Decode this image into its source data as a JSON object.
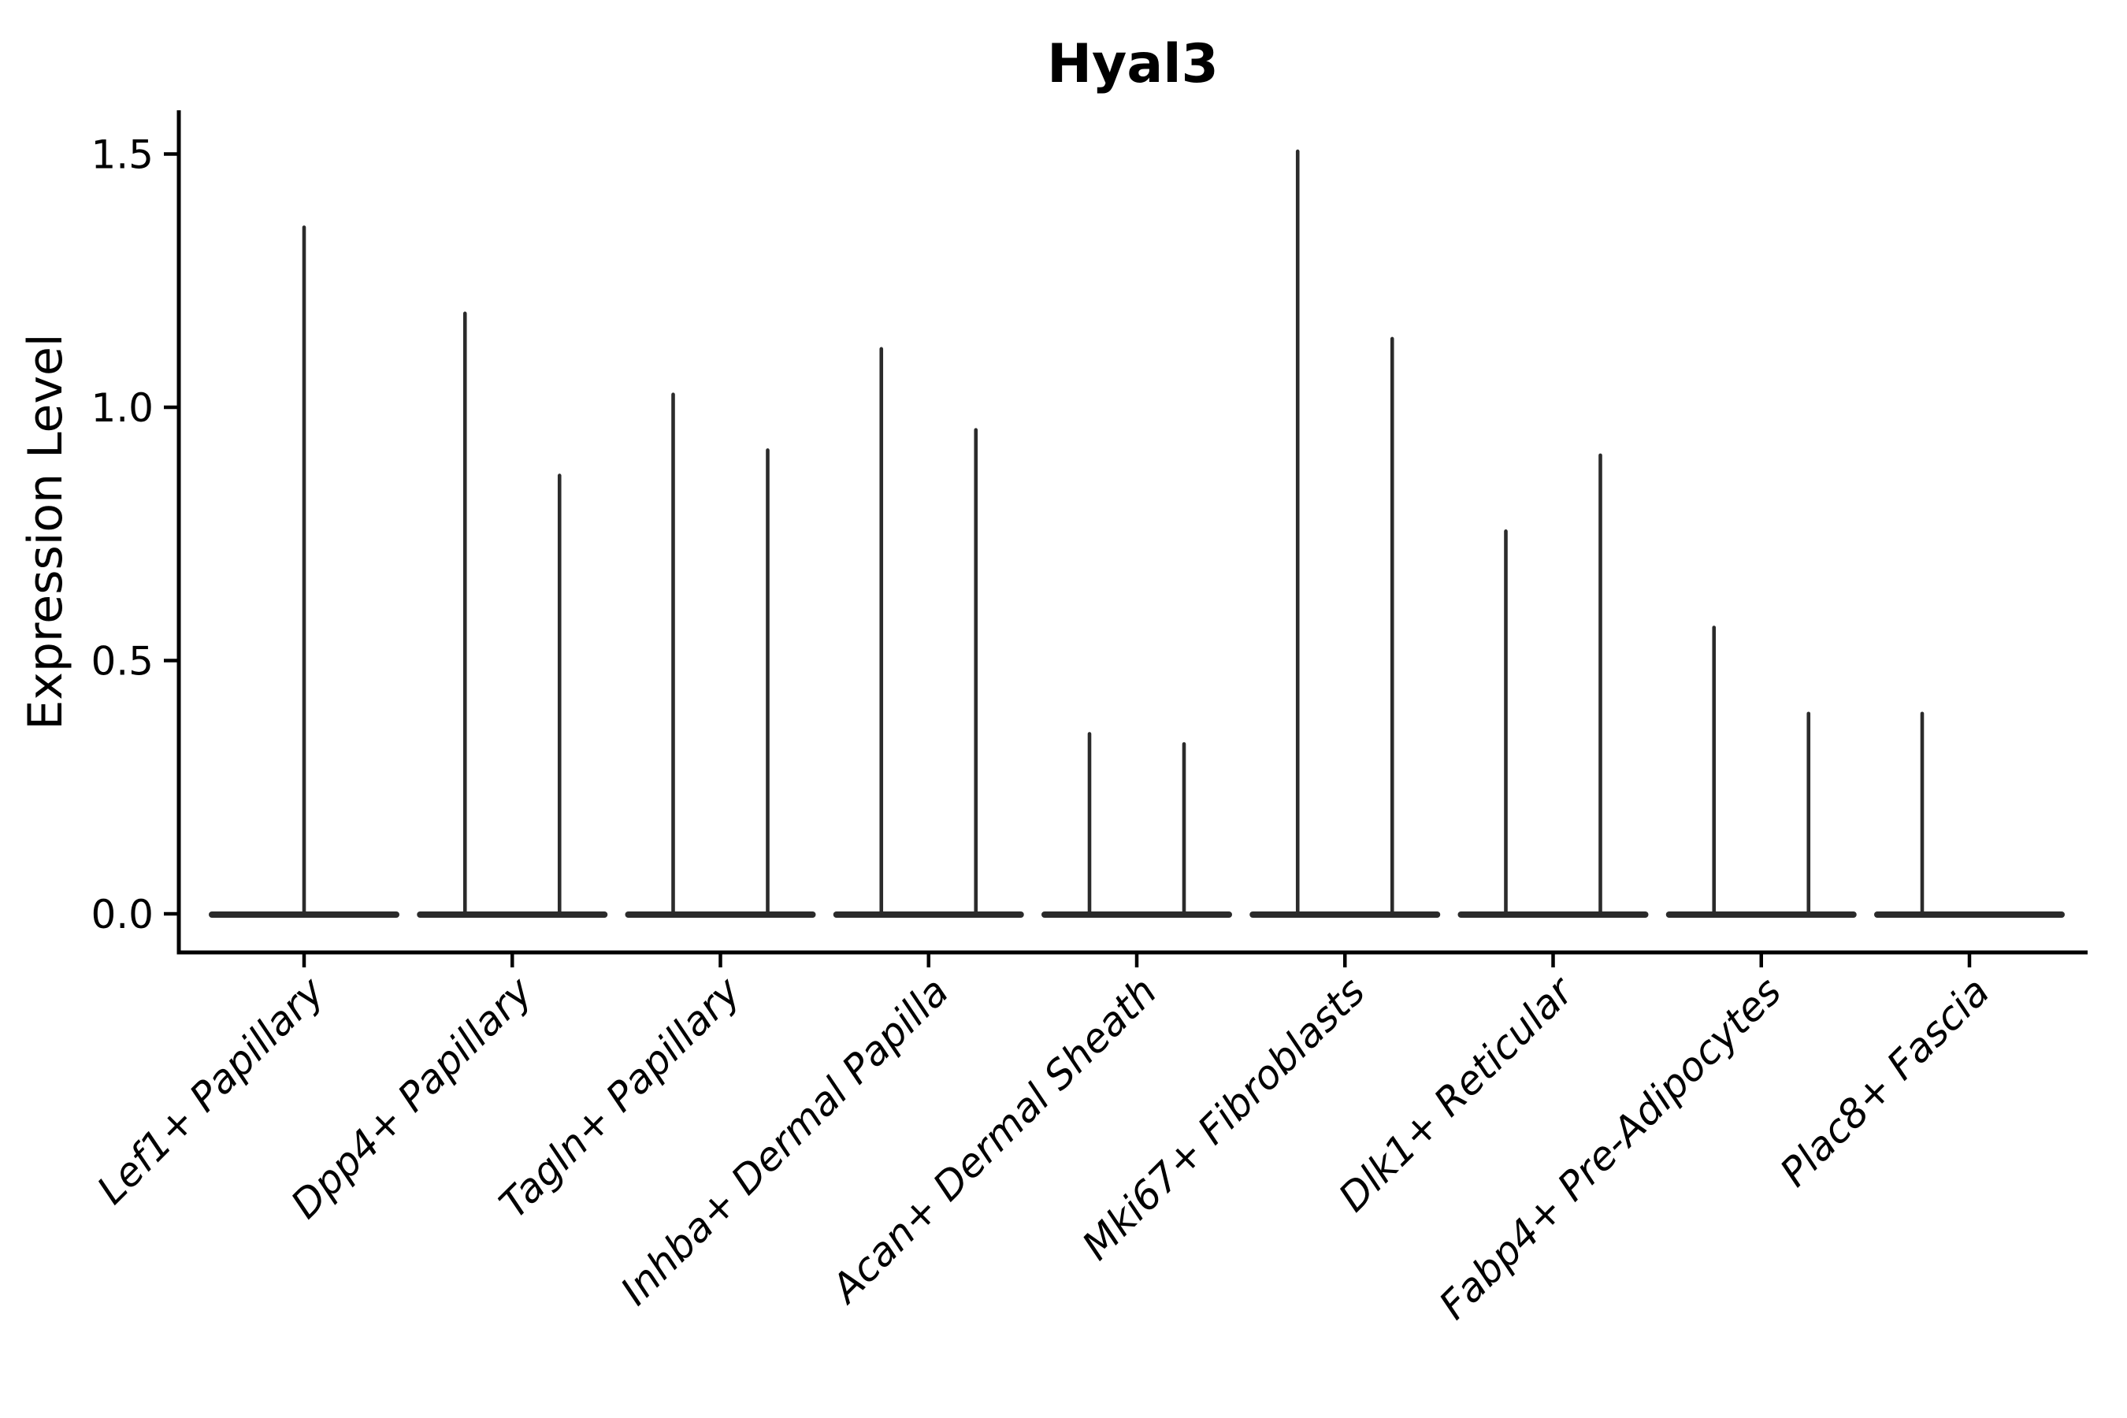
{
  "chart_data": {
    "type": "violin",
    "title": "Hyal3",
    "ylabel": "Expression Level",
    "xlabel": "",
    "grid": false,
    "legend": "none",
    "ylim": [
      -0.08,
      1.66
    ],
    "x_tick_rotation": 45,
    "colors": {
      "violin": "#2b2b2b",
      "axis": "#000000",
      "background": "#ffffff"
    },
    "y_ticks": [
      {
        "value": 0.0,
        "label": "0.0"
      },
      {
        "value": 0.5,
        "label": "0.5"
      },
      {
        "value": 1.0,
        "label": "1.0"
      },
      {
        "value": 1.5,
        "label": "1.5"
      }
    ],
    "categories": [
      {
        "label": "Lef1+ Papillary",
        "violins": [
          {
            "pos": "center",
            "max": 1.36
          }
        ]
      },
      {
        "label": "Dpp4+ Papillary",
        "violins": [
          {
            "pos": "left",
            "max": 1.19
          },
          {
            "pos": "right",
            "max": 0.87
          }
        ]
      },
      {
        "label": "Tagln+ Papillary",
        "violins": [
          {
            "pos": "left",
            "max": 1.03
          },
          {
            "pos": "right",
            "max": 0.92
          }
        ]
      },
      {
        "label": "Inhba+ Dermal Papilla",
        "violins": [
          {
            "pos": "left",
            "max": 1.12
          },
          {
            "pos": "right",
            "max": 0.96
          }
        ]
      },
      {
        "label": "Acan+ Dermal Sheath",
        "violins": [
          {
            "pos": "left",
            "max": 0.36
          },
          {
            "pos": "right",
            "max": 0.34
          }
        ]
      },
      {
        "label": "Mki67+ Fibroblasts",
        "violins": [
          {
            "pos": "left",
            "max": 1.51
          },
          {
            "pos": "right",
            "max": 1.14
          }
        ]
      },
      {
        "label": "Dlk1+ Reticular",
        "violins": [
          {
            "pos": "left",
            "max": 0.76
          },
          {
            "pos": "right",
            "max": 0.91
          }
        ]
      },
      {
        "label": "Fabp4+ Pre-Adipocytes",
        "violins": [
          {
            "pos": "left",
            "max": 0.57
          },
          {
            "pos": "right",
            "max": 0.4
          }
        ]
      },
      {
        "label": "Plac8+ Fascia",
        "violins": [
          {
            "pos": "left",
            "max": 0.4
          }
        ]
      }
    ]
  }
}
